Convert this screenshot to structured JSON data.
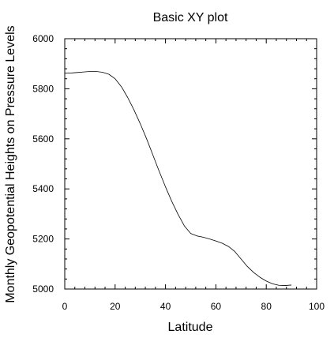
{
  "chart_data": {
    "type": "line",
    "title": "Basic XY plot",
    "xlabel": "Latitude",
    "ylabel": "Monthly Geopotential Heights on Pressure Levels",
    "xlim": [
      0,
      100
    ],
    "ylim": [
      5000,
      6000
    ],
    "x_ticks": [
      0,
      20,
      40,
      60,
      80,
      100
    ],
    "y_ticks": [
      5000,
      5200,
      5400,
      5600,
      5800,
      6000
    ],
    "x_tick_labels": [
      "0",
      "20",
      "40",
      "60",
      "80",
      "100"
    ],
    "y_tick_labels": [
      "5000",
      "5200",
      "5400",
      "5600",
      "5800",
      "6000"
    ],
    "x_minor_step": 4,
    "y_minor_step": 40,
    "grid": false,
    "series": [
      {
        "color": "#000000",
        "x": [
          0,
          2.5,
          5,
          7.5,
          10,
          12.5,
          15,
          17.5,
          20,
          22.5,
          25,
          27.5,
          30,
          32.5,
          35,
          37.5,
          40,
          42.5,
          45,
          47.5,
          50,
          52.5,
          55,
          57.5,
          60,
          62.5,
          65,
          67.5,
          70,
          72.5,
          75,
          77.5,
          80,
          82.5,
          85,
          87.5,
          90
        ],
        "y": [
          5862,
          5863,
          5865,
          5867,
          5869,
          5869,
          5866,
          5858,
          5840,
          5808,
          5765,
          5715,
          5660,
          5600,
          5535,
          5470,
          5408,
          5350,
          5298,
          5252,
          5222,
          5212,
          5207,
          5200,
          5192,
          5183,
          5170,
          5150,
          5120,
          5090,
          5066,
          5047,
          5032,
          5021,
          5015,
          5014,
          5016
        ]
      }
    ]
  }
}
